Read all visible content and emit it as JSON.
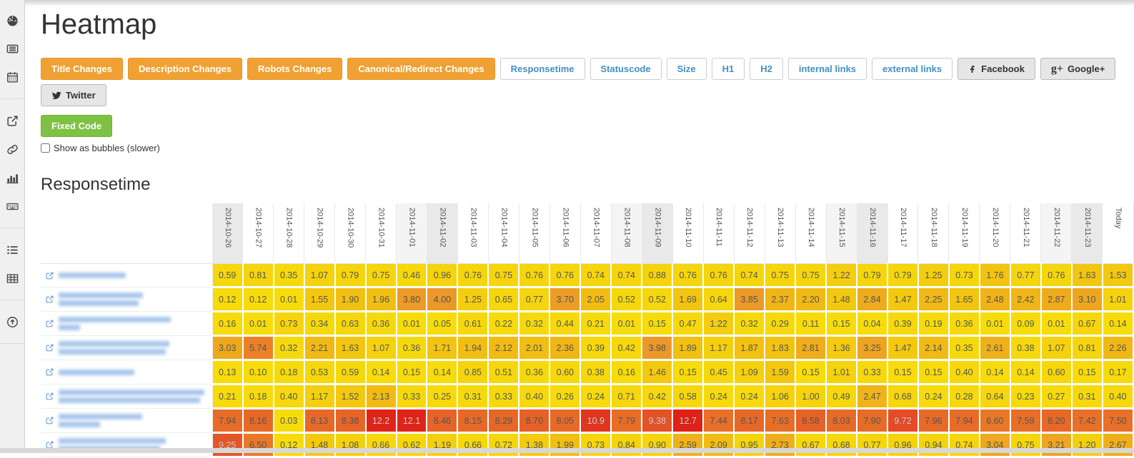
{
  "page": {
    "title": "Heatmap",
    "section_title": "Responsetime"
  },
  "sidebar": {
    "groups": [
      [
        "dashboard-icon",
        "newspaper-icon",
        "calendar-icon"
      ],
      [
        "external-link-icon",
        "link-icon",
        "bar-chart-icon",
        "keyboard-icon"
      ],
      [
        "list-icon",
        "table-icon"
      ],
      [
        "arrow-circle-up-icon"
      ]
    ]
  },
  "toolbar": {
    "active_filters": [
      "Title Changes",
      "Description Changes",
      "Robots Changes",
      "Canonical/Redirect Changes"
    ],
    "metrics": [
      "Responsetime",
      "Statuscode",
      "Size",
      "H1",
      "H2",
      "internal links",
      "external links"
    ],
    "social": [
      {
        "label": "Facebook",
        "icon": "facebook-icon"
      },
      {
        "label": "Google+",
        "icon": "googleplus-icon"
      },
      {
        "label": "Twitter",
        "icon": "twitter-icon"
      }
    ],
    "fixed_code_label": "Fixed Code"
  },
  "checkbox": {
    "label": "Show as bubbles (slower)",
    "checked": false
  },
  "colors": {
    "active_filter_bg": "#F0A132",
    "fixed_code_bg": "#7DC243",
    "metric_text": "#4290C3",
    "saturday_bg": "#f4f4f4",
    "sunday_bg": "#e9e9e9",
    "heat_scale": [
      [
        0,
        "#F7DC0B"
      ],
      [
        1,
        "#F5D30D"
      ],
      [
        2,
        "#F1BE12"
      ],
      [
        3,
        "#EEA81E"
      ],
      [
        4,
        "#EC9829"
      ],
      [
        5,
        "#EB8A29"
      ],
      [
        6,
        "#E97E28"
      ],
      [
        7,
        "#E87428"
      ],
      [
        8,
        "#E76B27"
      ],
      [
        9,
        "#E55C27"
      ],
      [
        10,
        "#E34425"
      ],
      [
        11,
        "#E1331D"
      ],
      [
        12,
        "#E0251A"
      ],
      [
        13,
        "#DF1F17"
      ]
    ]
  },
  "chart_data": {
    "type": "heatmap",
    "title": "Responsetime",
    "columns": [
      "2014-10-26",
      "2014-10-27",
      "2014-10-28",
      "2014-10-29",
      "2014-10-30",
      "2014-10-31",
      "2014-11-01",
      "2014-11-02",
      "2014-11-03",
      "2014-11-04",
      "2014-11-05",
      "2014-11-06",
      "2014-11-07",
      "2014-11-08",
      "2014-11-09",
      "2014-11-10",
      "2014-11-11",
      "2014-11-12",
      "2014-11-13",
      "2014-11-14",
      "2014-11-15",
      "2014-11-16",
      "2014-11-17",
      "2014-11-18",
      "2014-11-19",
      "2014-11-20",
      "2014-11-21",
      "2014-11-22",
      "2014-11-23",
      "Today"
    ],
    "weekend_shading": true,
    "rows": [
      {
        "link_blurred": true,
        "blur_lines": [
          94
        ],
        "values": [
          "0.59",
          "0.81",
          "0.35",
          "1.07",
          "0.79",
          "0.75",
          "0.46",
          "0.96",
          "0.76",
          "0.75",
          "0.76",
          "0.76",
          "0.74",
          "0.74",
          "0.88",
          "0.76",
          "0.76",
          "0.74",
          "0.75",
          "0.75",
          "1.22",
          "0.79",
          "0.79",
          "1.25",
          "0.73",
          "1.76",
          "0.77",
          "0.76",
          "1.63",
          "1.53"
        ]
      },
      {
        "link_blurred": true,
        "blur_lines": [
          118,
          112
        ],
        "values": [
          "0.12",
          "0.12",
          "0.01",
          "1.55",
          "1.90",
          "1.96",
          "3.80",
          "4.00",
          "1.25",
          "0.65",
          "0.77",
          "3.70",
          "2.05",
          "0.52",
          "0.52",
          "1.69",
          "0.64",
          "3.85",
          "2.37",
          "2.20",
          "1.48",
          "2.84",
          "1.47",
          "2.25",
          "1.65",
          "2.48",
          "2.42",
          "2.87",
          "3.10",
          "1.01"
        ]
      },
      {
        "link_blurred": true,
        "blur_lines": [
          157,
          30
        ],
        "values": [
          "0.16",
          "0.01",
          "0.73",
          "0.34",
          "0.63",
          "0.36",
          "0.01",
          "0.05",
          "0.61",
          "0.22",
          "0.32",
          "0.44",
          "0.21",
          "0.01",
          "0.15",
          "0.47",
          "1.22",
          "0.32",
          "0.29",
          "0.11",
          "0.15",
          "0.04",
          "0.39",
          "0.19",
          "0.36",
          "0.01",
          "0.09",
          "0.01",
          "0.67",
          "0.14"
        ]
      },
      {
        "link_blurred": true,
        "blur_lines": [
          155,
          150
        ],
        "values": [
          "3.03",
          "5.74",
          "0.32",
          "2.21",
          "1.63",
          "1.07",
          "0.36",
          "1.71",
          "1.94",
          "2.12",
          "2.01",
          "2.36",
          "0.39",
          "0.42",
          "3.98",
          "1.89",
          "1.17",
          "1.87",
          "1.83",
          "2.81",
          "1.36",
          "3.25",
          "1.47",
          "2.14",
          "0.35",
          "2.61",
          "0.38",
          "1.07",
          "0.81",
          "2.26"
        ]
      },
      {
        "link_blurred": true,
        "blur_lines": [
          106
        ],
        "values": [
          "0.13",
          "0.10",
          "0.18",
          "0.53",
          "0.59",
          "0.14",
          "0.15",
          "0.14",
          "0.85",
          "0.51",
          "0.36",
          "0.60",
          "0.38",
          "0.16",
          "1.46",
          "0.15",
          "0.45",
          "1.09",
          "1.59",
          "0.15",
          "1.01",
          "0.33",
          "0.15",
          "0.15",
          "0.40",
          "0.14",
          "0.14",
          "0.60",
          "0.15",
          "0.17"
        ]
      },
      {
        "link_blurred": true,
        "blur_lines": [
          204,
          198
        ],
        "values": [
          "0.21",
          "0.18",
          "0.40",
          "1.17",
          "1.52",
          "2.13",
          "0.33",
          "0.25",
          "0.31",
          "0.33",
          "0.40",
          "0.26",
          "0.24",
          "0.71",
          "0.42",
          "0.58",
          "0.24",
          "0.24",
          "1.06",
          "1.00",
          "0.49",
          "2.47",
          "0.68",
          "0.24",
          "0.28",
          "0.64",
          "0.23",
          "0.27",
          "0.31",
          "0.40"
        ]
      },
      {
        "link_blurred": true,
        "blur_lines": [
          117,
          58
        ],
        "values": [
          "7.94",
          "8.16",
          "0.03",
          "8.13",
          "8.38",
          "12.2",
          "12.1",
          "8.46",
          "8.15",
          "8.29",
          "8.70",
          "8.05",
          "10.9",
          "7.79",
          "9.38",
          "12.7",
          "7.44",
          "8.17",
          "7.63",
          "8.58",
          "8.03",
          "7.90",
          "9.72",
          "7.96",
          "7.94",
          "6.60",
          "7.59",
          "8.20",
          "7.42",
          "7.50"
        ]
      },
      {
        "link_blurred": true,
        "blur_lines": [
          150,
          142
        ],
        "values": [
          "9.25",
          "6.50",
          "0.12",
          "1.48",
          "1.08",
          "0.66",
          "0.62",
          "1.19",
          "0.66",
          "0.72",
          "1.38",
          "1.99",
          "0.73",
          "0.84",
          "0.90",
          "2.59",
          "2.09",
          "0.95",
          "2.73",
          "0.67",
          "0.68",
          "0.77",
          "0.96",
          "0.94",
          "0.74",
          "3.04",
          "0.75",
          "3.21",
          "1.20",
          "2.67"
        ]
      }
    ]
  }
}
